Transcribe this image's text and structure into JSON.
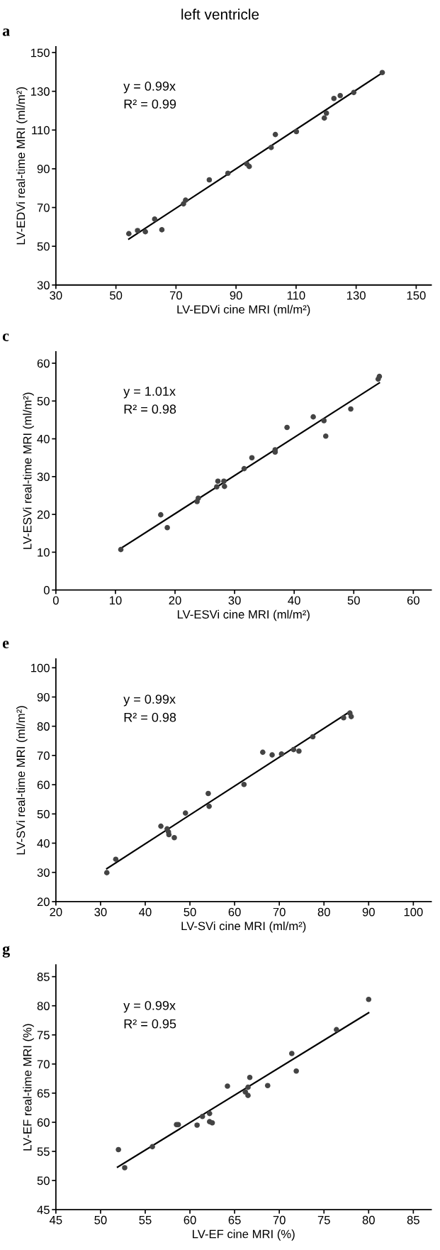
{
  "chart_data": [
    {
      "type": "scatter",
      "title": "left ventricle",
      "subtitle": "a",
      "xlabel": "LV-EDVi cine MRI (ml/m²)",
      "ylabel": "LV-EDVi real-time MRI (ml/m²)",
      "xlim": [
        30,
        155
      ],
      "ylim": [
        30,
        153
      ],
      "xticks": [
        30,
        50,
        70,
        90,
        110,
        130,
        150
      ],
      "yticks": [
        30,
        50,
        70,
        90,
        110,
        130,
        150
      ],
      "grid": false,
      "legend": false,
      "annotations": [
        "y = 0.99x",
        "R² = 0.99"
      ],
      "series": [
        {
          "color": "#444444",
          "marker": "circle",
          "x": [
            54.3,
            57.2,
            59.8,
            62.9,
            65.3,
            72.5,
            73.2,
            81.1,
            87.3,
            93.6,
            94.4,
            101.7,
            103.1,
            110.1,
            119.4,
            120.1,
            122.6,
            124.7,
            129.2,
            138.7
          ],
          "values": [
            56.5,
            58.1,
            57.5,
            64.0,
            58.5,
            71.9,
            73.8,
            84.3,
            87.7,
            92.5,
            91.2,
            101.0,
            107.7,
            109.2,
            116.2,
            118.7,
            126.3,
            127.8,
            129.4,
            139.7
          ]
        },
        {
          "type": "line",
          "color": "#000000",
          "line_style": "solid",
          "x": [
            54.3,
            138.7
          ],
          "values": [
            53.7,
            139.5
          ]
        }
      ]
    },
    {
      "type": "scatter",
      "subtitle": "c",
      "xlabel": "LV-ESVi cine MRI (ml/m²)",
      "ylabel": "LV-ESVi real-time MRI (ml/m²)",
      "xlim": [
        0,
        63
      ],
      "ylim": [
        0,
        63
      ],
      "xticks": [
        0,
        10,
        20,
        30,
        40,
        50,
        60
      ],
      "yticks": [
        0,
        10,
        20,
        30,
        40,
        50,
        60
      ],
      "grid": false,
      "legend": false,
      "annotations": [
        "y = 1.01x",
        "R² = 0.98"
      ],
      "series": [
        {
          "color": "#444444",
          "marker": "circle",
          "x": [
            10.9,
            17.6,
            18.7,
            23.7,
            23.9,
            27.0,
            27.2,
            28.2,
            28.3,
            31.6,
            32.9,
            36.8,
            36.8,
            38.8,
            43.2,
            45.0,
            45.3,
            49.5,
            54.1,
            54.3
          ],
          "values": [
            10.7,
            19.9,
            16.5,
            23.4,
            24.3,
            27.3,
            28.8,
            28.8,
            27.4,
            32.1,
            35.0,
            37.1,
            36.5,
            43.0,
            45.8,
            44.8,
            40.7,
            47.9,
            55.8,
            56.5
          ]
        },
        {
          "type": "line",
          "color": "#000000",
          "line_style": "solid",
          "x": [
            10.9,
            54.3
          ],
          "values": [
            11.0,
            54.8
          ]
        }
      ]
    },
    {
      "type": "scatter",
      "subtitle": "e",
      "xlabel": "LV-SVi cine MRI (ml/m²)",
      "ylabel": "LV-SVi real-time MRI (ml/m²)",
      "xlim": [
        20,
        104
      ],
      "ylim": [
        20,
        103
      ],
      "xticks": [
        20,
        30,
        40,
        50,
        60,
        70,
        80,
        90,
        100
      ],
      "yticks": [
        20,
        30,
        40,
        50,
        60,
        70,
        80,
        90,
        100
      ],
      "grid": false,
      "legend": false,
      "annotations": [
        "y = 0.99x",
        "R² = 0.98"
      ],
      "series": [
        {
          "color": "#444444",
          "marker": "circle",
          "x": [
            31.4,
            33.4,
            43.5,
            44.9,
            45.2,
            45.3,
            46.5,
            49.0,
            54.1,
            54.3,
            62.1,
            66.3,
            68.4,
            70.5,
            73.2,
            74.4,
            77.5,
            84.4,
            85.8,
            86.1
          ],
          "values": [
            29.9,
            34.5,
            45.8,
            44.9,
            43.8,
            42.9,
            41.9,
            50.3,
            57.0,
            52.6,
            60.1,
            71.1,
            70.2,
            70.5,
            72.0,
            71.5,
            76.4,
            82.9,
            84.5,
            83.3
          ]
        },
        {
          "type": "line",
          "color": "#000000",
          "line_style": "solid",
          "x": [
            31.4,
            85.8
          ],
          "values": [
            31.3,
            85.0
          ]
        }
      ]
    },
    {
      "type": "scatter",
      "subtitle": "g",
      "xlabel": "LV-EF cine MRI (%)",
      "ylabel": "LV-EF real-time MRI (%)",
      "xlim": [
        45,
        87
      ],
      "ylim": [
        45,
        87
      ],
      "xticks": [
        45,
        50,
        55,
        60,
        65,
        70,
        75,
        80,
        85
      ],
      "yticks": [
        45,
        50,
        55,
        60,
        65,
        70,
        75,
        80,
        85
      ],
      "grid": false,
      "legend": false,
      "annotations": [
        "y = 0.99x",
        "R² = 0.95"
      ],
      "series": [
        {
          "color": "#444444",
          "marker": "circle",
          "x": [
            52.0,
            52.7,
            55.8,
            58.5,
            58.7,
            60.8,
            61.4,
            62.2,
            62.2,
            62.5,
            64.2,
            66.2,
            66.5,
            66.5,
            66.7,
            68.7,
            71.4,
            71.9,
            76.4,
            80.0
          ],
          "values": [
            55.3,
            52.2,
            55.8,
            59.6,
            59.6,
            59.5,
            61.0,
            61.5,
            60.1,
            59.9,
            66.2,
            65.2,
            66.0,
            64.6,
            67.7,
            66.3,
            71.8,
            68.8,
            75.9,
            81.1
          ]
        },
        {
          "type": "line",
          "color": "#000000",
          "line_style": "solid",
          "x": [
            51.9,
            80.0
          ],
          "values": [
            52.3,
            78.8
          ]
        }
      ]
    }
  ]
}
